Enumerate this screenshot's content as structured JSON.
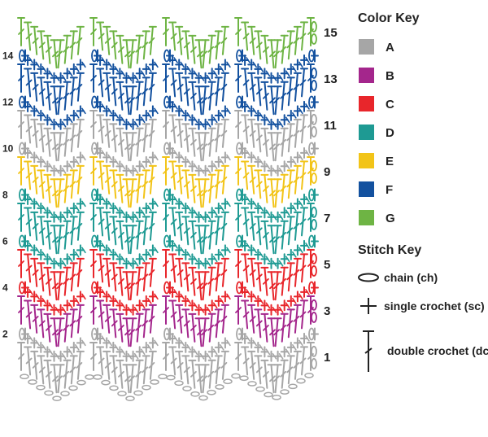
{
  "color_key": {
    "title": "Color Key",
    "items": [
      {
        "label": "A",
        "color": "#a6a6a6"
      },
      {
        "label": "B",
        "color": "#a4268c"
      },
      {
        "label": "C",
        "color": "#e8262b"
      },
      {
        "label": "D",
        "color": "#1e9a93"
      },
      {
        "label": "E",
        "color": "#f2c418"
      },
      {
        "label": "F",
        "color": "#13519f"
      },
      {
        "label": "G",
        "color": "#6eb444"
      }
    ]
  },
  "stitch_key": {
    "title": "Stitch Key",
    "items": [
      {
        "icon": "chain-icon",
        "label": "chain (ch)"
      },
      {
        "icon": "single-crochet-icon",
        "label": "single crochet (sc)"
      },
      {
        "icon": "double-crochet-icon",
        "label": "double crochet (dc)"
      }
    ]
  },
  "rows": [
    {
      "n": 1,
      "label": "1",
      "type": "dc",
      "color": "A"
    },
    {
      "n": 2,
      "label": "2",
      "type": "sc",
      "color": "A"
    },
    {
      "n": 3,
      "label": "3",
      "type": "dc",
      "color": "B"
    },
    {
      "n": 4,
      "label": "4",
      "type": "sc",
      "color": "C"
    },
    {
      "n": 5,
      "label": "5",
      "type": "dc",
      "color": "C"
    },
    {
      "n": 6,
      "label": "6",
      "type": "sc",
      "color": "D"
    },
    {
      "n": 7,
      "label": "7",
      "type": "dc",
      "color": "D"
    },
    {
      "n": 8,
      "label": "8",
      "type": "sc",
      "color": "D"
    },
    {
      "n": 9,
      "label": "9",
      "type": "dc",
      "color": "E"
    },
    {
      "n": 10,
      "label": "10",
      "type": "sc",
      "color": "A"
    },
    {
      "n": 11,
      "label": "11",
      "type": "dc",
      "color": "A"
    },
    {
      "n": 12,
      "label": "12",
      "type": "sc",
      "color": "F"
    },
    {
      "n": 13,
      "label": "13",
      "type": "dc",
      "color": "F"
    },
    {
      "n": 14,
      "label": "14",
      "type": "sc",
      "color": "F"
    },
    {
      "n": 15,
      "label": "15",
      "type": "dc",
      "color": "G"
    }
  ]
}
